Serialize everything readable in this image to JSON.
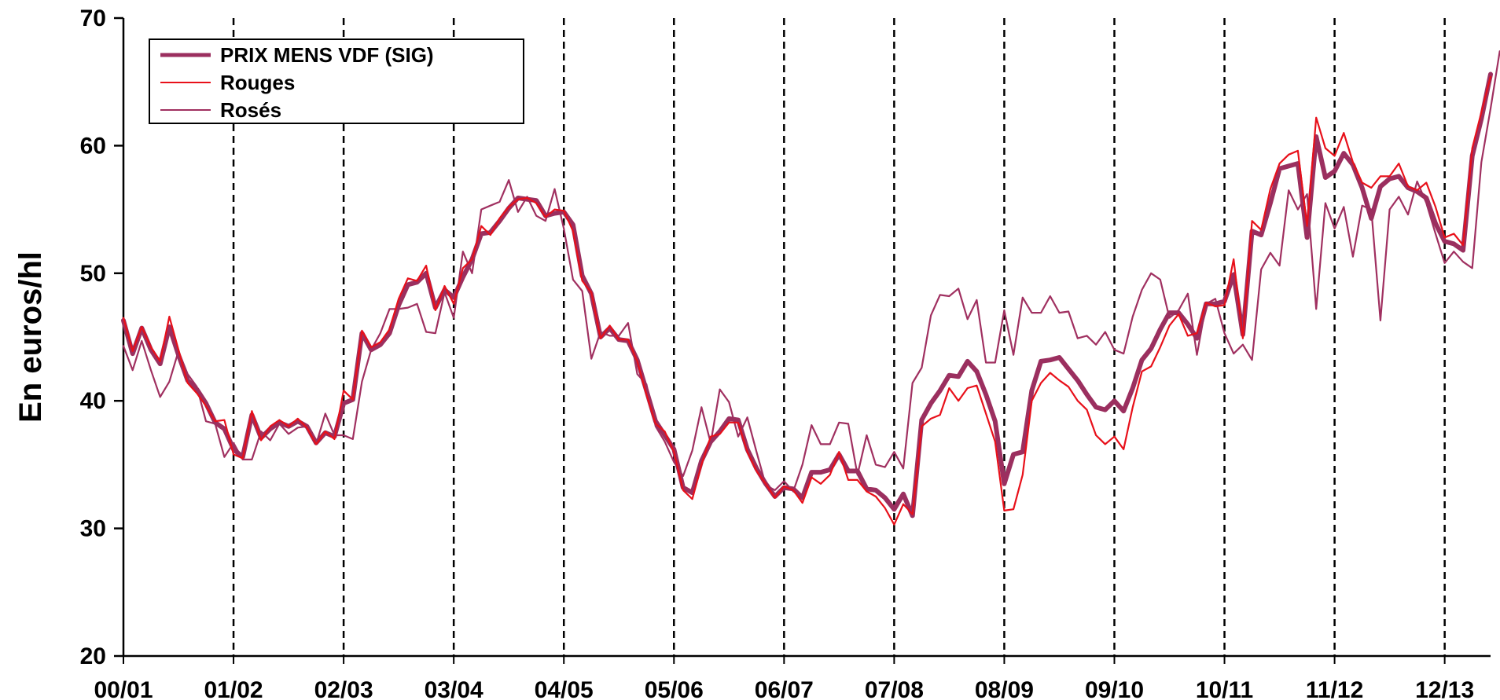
{
  "chart_data": {
    "type": "line",
    "title": "",
    "xlabel": "",
    "ylabel": "En euros/hl",
    "ylim": [
      20,
      70
    ],
    "yticks": [
      20,
      30,
      40,
      50,
      60,
      70
    ],
    "xlim": [
      0,
      149
    ],
    "x_tick_labels": [
      "00/01",
      "01/02",
      "02/03",
      "03/04",
      "04/05",
      "05/06",
      "06/07",
      "07/08",
      "08/09",
      "09/10",
      "10/11",
      "11/12",
      "12/13"
    ],
    "x_tick_positions": [
      0,
      12,
      24,
      36,
      48,
      60,
      72,
      84,
      96,
      108,
      120,
      132,
      144
    ],
    "season_dividers": [
      12,
      24,
      36,
      48,
      60,
      72,
      84,
      96,
      108,
      120,
      132,
      144
    ],
    "grid": false,
    "legend_position": "top-left",
    "colors": {
      "prix": "#9b2f5f",
      "rouges": "#e8101a",
      "roses": "#a03060",
      "axis": "#000000",
      "divider": "#000000"
    },
    "series": [
      {
        "name": "PRIX MENS VDF (SIG)",
        "values": [
          46.3,
          43.7,
          45.7,
          44.0,
          42.9,
          45.8,
          43.6,
          41.6,
          40.9,
          39.8,
          38.3,
          37.8,
          36.2,
          35.6,
          38.9,
          37.1,
          37.8,
          38.3,
          38.0,
          38.4,
          38.0,
          36.7,
          37.5,
          37.2,
          39.8,
          40.1,
          45.3,
          44.0,
          44.4,
          45.3,
          47.5,
          49.1,
          49.3,
          50.0,
          47.3,
          48.7,
          48.1,
          49.7,
          51.1,
          53.1,
          53.2,
          54.1,
          55.1,
          55.9,
          55.8,
          55.7,
          54.5,
          54.7,
          54.8,
          53.8,
          49.8,
          48.4,
          45.0,
          45.7,
          44.8,
          44.7,
          43.2,
          40.8,
          38.4,
          37.3,
          36.2,
          33.2,
          32.8,
          35.3,
          36.8,
          37.6,
          38.6,
          38.5,
          36.2,
          34.7,
          33.5,
          32.5,
          33.2,
          33.1,
          32.4,
          34.4,
          34.4,
          34.6,
          35.8,
          34.5,
          34.5,
          33.1,
          33.0,
          32.4,
          31.5,
          32.7,
          31.0,
          38.5,
          39.8,
          40.8,
          42.0,
          41.9,
          43.1,
          42.3,
          40.5,
          38.4,
          33.5,
          35.8,
          36.0,
          40.8,
          43.1,
          43.2,
          43.4,
          42.5,
          41.6,
          40.5,
          39.5,
          39.3,
          40.0,
          39.2,
          41.0,
          43.2,
          44.1,
          45.6,
          46.9,
          46.9,
          46.0,
          44.9,
          47.6,
          47.6,
          47.8,
          49.9,
          45.2,
          53.3,
          53.0,
          55.5,
          58.2,
          58.4,
          58.6,
          52.8,
          60.7,
          57.5,
          58.0,
          59.4,
          58.5,
          56.7,
          54.3,
          56.8,
          57.4,
          57.6,
          56.7,
          56.4,
          55.9,
          53.9,
          52.5,
          52.3,
          51.8,
          59.2,
          62.1,
          65.6
        ]
      },
      {
        "name": "Rouges",
        "values": [
          46.5,
          43.9,
          45.8,
          44.2,
          43.1,
          46.6,
          44.0,
          41.4,
          40.6,
          39.6,
          38.4,
          38.5,
          35.8,
          35.5,
          39.2,
          36.9,
          38.0,
          38.5,
          38.0,
          38.6,
          37.9,
          36.6,
          37.6,
          37.0,
          40.8,
          40.1,
          45.5,
          44.2,
          44.6,
          45.6,
          48.0,
          49.6,
          49.4,
          50.6,
          47.1,
          49.0,
          47.6,
          50.4,
          51.1,
          53.7,
          53.0,
          54.3,
          55.2,
          55.8,
          55.9,
          55.5,
          54.4,
          55.0,
          54.9,
          53.3,
          49.4,
          48.5,
          44.9,
          45.9,
          44.8,
          44.8,
          43.1,
          40.5,
          38.2,
          37.6,
          36.0,
          33.0,
          32.3,
          35.0,
          37.2,
          37.4,
          38.3,
          38.3,
          36.0,
          34.5,
          33.5,
          32.4,
          33.3,
          33.0,
          32.0,
          34.0,
          33.5,
          34.2,
          36.0,
          33.8,
          33.8,
          32.9,
          32.5,
          31.6,
          30.3,
          31.9,
          31.1,
          38.0,
          38.6,
          38.9,
          41.0,
          40.0,
          41.0,
          41.2,
          39.0,
          36.8,
          31.4,
          31.5,
          34.2,
          40.0,
          41.4,
          42.2,
          41.6,
          41.1,
          40.0,
          39.3,
          37.3,
          36.6,
          37.2,
          36.2,
          39.5,
          42.3,
          42.7,
          44.2,
          45.9,
          46.8,
          45.1,
          45.3,
          47.7,
          47.4,
          47.5,
          51.1,
          44.9,
          54.1,
          53.4,
          56.6,
          58.6,
          59.3,
          59.6,
          53.7,
          62.2,
          59.8,
          59.2,
          61.0,
          58.7,
          57.1,
          56.7,
          57.6,
          57.6,
          58.6,
          56.8,
          56.5,
          57.1,
          55.2,
          52.8,
          53.1,
          52.2,
          59.8,
          62.6,
          65.4
        ]
      },
      {
        "name": "Rosés",
        "values": [
          44.3,
          42.4,
          44.7,
          42.4,
          40.3,
          41.5,
          43.9,
          42.1,
          41.1,
          38.4,
          38.2,
          35.6,
          36.7,
          35.4,
          35.4,
          37.6,
          36.9,
          38.2,
          37.4,
          37.9,
          38.0,
          36.6,
          39.0,
          37.3,
          37.3,
          37.0,
          41.5,
          44.0,
          45.3,
          47.2,
          47.2,
          47.3,
          47.6,
          45.4,
          45.3,
          48.5,
          46.5,
          51.7,
          50.0,
          55.0,
          55.3,
          55.6,
          57.3,
          54.8,
          56.0,
          54.5,
          54.1,
          56.6,
          53.5,
          49.5,
          48.6,
          43.3,
          45.4,
          45.1,
          45.1,
          46.1,
          42.1,
          41.3,
          38.0,
          36.8,
          35.2,
          34.1,
          36.1,
          39.5,
          36.7,
          40.9,
          39.9,
          37.2,
          38.7,
          36.0,
          33.4,
          33.0,
          33.7,
          32.9,
          35.0,
          38.1,
          36.6,
          36.6,
          38.3,
          38.2,
          34.2,
          37.3,
          35.0,
          34.8,
          36.0,
          34.7,
          41.4,
          42.6,
          46.7,
          48.3,
          48.2,
          48.8,
          46.4,
          47.9,
          43.0,
          43.0,
          47.1,
          43.6,
          48.1,
          46.9,
          46.9,
          48.2,
          46.9,
          47.0,
          44.9,
          45.1,
          44.4,
          45.4,
          44.0,
          43.7,
          46.6,
          48.7,
          50.0,
          49.5,
          46.5,
          47.1,
          48.4,
          43.6,
          47.6,
          48.0,
          45.3,
          43.7,
          44.4,
          43.2,
          50.3,
          51.6,
          50.6,
          56.5,
          55.0,
          56.2,
          47.2,
          55.5,
          53.5,
          55.2,
          51.3,
          55.3,
          55.0,
          46.3,
          55.0,
          56.0,
          54.6,
          57.2,
          55.5,
          53.1,
          50.8,
          51.7,
          50.9,
          50.4,
          58.7,
          62.9,
          67.4
        ]
      }
    ]
  }
}
